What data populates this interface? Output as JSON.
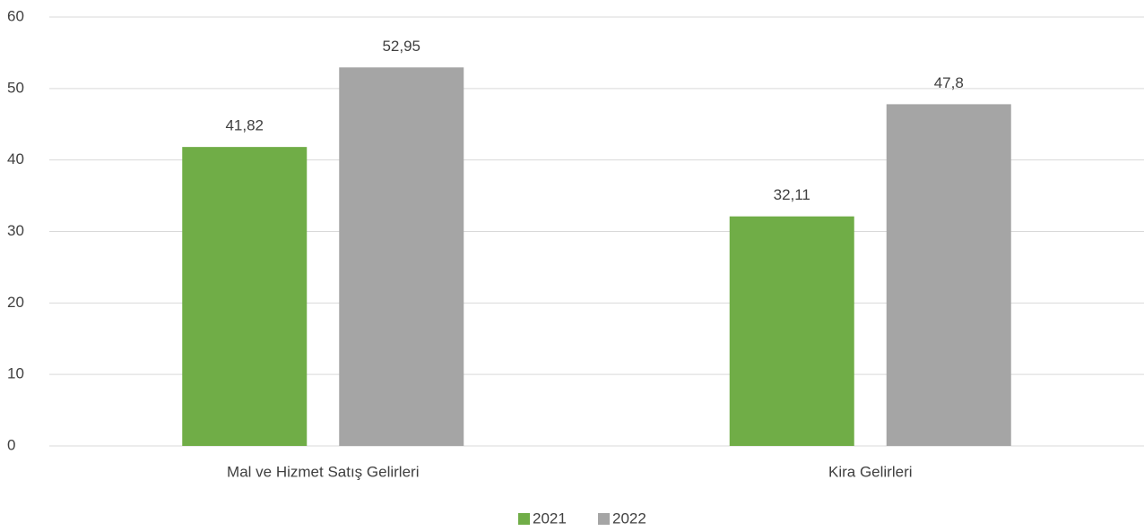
{
  "chart_data": {
    "type": "bar",
    "categories": [
      "Mal ve Hizmet Satış Gelirleri",
      "Kira Gelirleri"
    ],
    "series": [
      {
        "name": "2021",
        "color": "#70ad47",
        "values": [
          41.82,
          32.11
        ],
        "value_labels": [
          "41,82",
          "32,11"
        ]
      },
      {
        "name": "2022",
        "color": "#a5a5a5",
        "values": [
          52.95,
          47.8
        ],
        "value_labels": [
          "52,95",
          "47,8"
        ]
      }
    ],
    "ylim": [
      0,
      60
    ],
    "yticks": [
      0,
      10,
      20,
      30,
      40,
      50,
      60
    ],
    "grid": true,
    "legend": "bottom"
  }
}
